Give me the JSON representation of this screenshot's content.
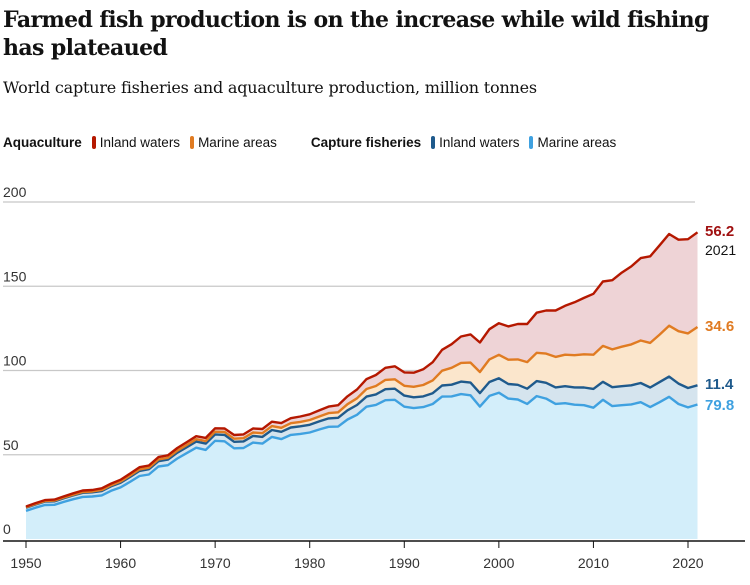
{
  "header": {
    "title": "Farmed fish production is on the increase while wild fishing has plateaued",
    "subtitle": "World capture fisheries and aquaculture production, million tonnes"
  },
  "legend": {
    "group1": "Aquaculture",
    "group2": "Capture fisheries",
    "items": [
      {
        "label": "Inland waters",
        "color": "#b51800"
      },
      {
        "label": "Marine areas",
        "color": "#e07b22"
      },
      {
        "label": "Inland waters",
        "color": "#1f5a8c"
      },
      {
        "label": "Marine areas",
        "color": "#3fa1e0"
      }
    ]
  },
  "end_labels": {
    "aqua_inland": "56.2",
    "year": "2021",
    "aqua_marine": "34.6",
    "cap_inland": "11.4",
    "cap_marine": "79.8"
  },
  "chart_data": {
    "type": "area",
    "stacked": true,
    "title": "Farmed fish production is on the increase while wild fishing has plateaued",
    "subtitle": "World capture fisheries and aquaculture production, million tonnes",
    "xlabel": "",
    "ylabel": "",
    "xlim": [
      1950,
      2021
    ],
    "ylim": [
      0,
      200
    ],
    "x_ticks": [
      1950,
      1960,
      1970,
      1980,
      1990,
      2000,
      2010,
      2020
    ],
    "y_ticks": [
      0,
      50,
      100,
      150,
      200
    ],
    "grid": true,
    "legend_position": "top",
    "x": [
      1950,
      1951,
      1952,
      1953,
      1954,
      1955,
      1956,
      1957,
      1958,
      1959,
      1960,
      1961,
      1962,
      1963,
      1964,
      1965,
      1966,
      1967,
      1968,
      1969,
      1970,
      1971,
      1972,
      1973,
      1974,
      1975,
      1976,
      1977,
      1978,
      1979,
      1980,
      1981,
      1982,
      1983,
      1984,
      1985,
      1986,
      1987,
      1988,
      1989,
      1990,
      1991,
      1992,
      1993,
      1994,
      1995,
      1996,
      1997,
      1998,
      1999,
      2000,
      2001,
      2002,
      2003,
      2004,
      2005,
      2006,
      2007,
      2008,
      2009,
      2010,
      2011,
      2012,
      2013,
      2014,
      2015,
      2016,
      2017,
      2018,
      2019,
      2020,
      2021
    ],
    "series": [
      {
        "name": "Capture fisheries – Marine areas",
        "color": "#3fa1e0",
        "values": [
          16.7,
          18.6,
          20.2,
          20.3,
          22.0,
          23.6,
          25.0,
          25.2,
          25.9,
          28.6,
          30.6,
          33.9,
          37.4,
          38.3,
          43.0,
          43.8,
          47.8,
          51.0,
          54.2,
          52.9,
          58.3,
          58.0,
          53.8,
          54.0,
          57.2,
          56.6,
          60.6,
          59.3,
          61.8,
          62.4,
          63.2,
          65.0,
          66.6,
          66.7,
          70.9,
          73.7,
          78.5,
          79.6,
          82.4,
          82.6,
          78.5,
          77.7,
          78.3,
          80.1,
          84.5,
          84.6,
          86.0,
          85.3,
          78.6,
          84.9,
          86.8,
          83.3,
          82.8,
          80.2,
          84.8,
          83.3,
          80.2,
          80.6,
          79.7,
          79.4,
          77.9,
          82.6,
          78.9,
          79.4,
          79.9,
          81.2,
          78.3,
          81.2,
          84.4,
          80.1,
          78.1,
          79.8
        ]
      },
      {
        "name": "Capture fisheries – Inland waters",
        "color": "#1f5a8c",
        "values": [
          1.8,
          1.9,
          2.0,
          2.1,
          2.2,
          2.3,
          2.4,
          2.5,
          2.6,
          2.7,
          2.8,
          2.9,
          3.0,
          3.1,
          3.2,
          3.3,
          3.4,
          3.5,
          3.6,
          3.7,
          3.8,
          3.8,
          3.9,
          3.9,
          4.0,
          4.0,
          4.1,
          4.3,
          4.4,
          4.5,
          4.6,
          4.8,
          5.0,
          5.2,
          5.5,
          5.8,
          6.0,
          6.2,
          6.5,
          6.6,
          6.6,
          6.4,
          6.3,
          6.4,
          6.6,
          7.0,
          7.4,
          7.5,
          8.0,
          8.3,
          8.6,
          8.7,
          8.7,
          9.0,
          8.9,
          9.4,
          9.8,
          10.1,
          10.3,
          10.5,
          11.2,
          10.7,
          11.2,
          11.3,
          11.3,
          11.4,
          11.6,
          11.9,
          12.0,
          12.1,
          11.5,
          11.4
        ]
      },
      {
        "name": "Aquaculture – Marine areas",
        "color": "#e07b22",
        "values": [
          0.3,
          0.3,
          0.3,
          0.4,
          0.4,
          0.4,
          0.5,
          0.5,
          0.6,
          0.6,
          0.7,
          0.8,
          0.9,
          0.9,
          1.0,
          1.1,
          1.2,
          1.3,
          1.4,
          1.5,
          1.6,
          1.7,
          1.8,
          1.9,
          2.0,
          2.2,
          2.3,
          2.4,
          2.5,
          2.6,
          2.8,
          2.9,
          3.1,
          3.3,
          3.6,
          4.0,
          4.5,
          5.0,
          5.5,
          5.6,
          5.8,
          6.2,
          6.8,
          7.6,
          8.8,
          10.0,
          11.1,
          11.9,
          12.5,
          13.4,
          13.9,
          14.4,
          15.1,
          15.8,
          16.8,
          17.3,
          18.1,
          18.7,
          19.1,
          19.7,
          20.3,
          21.3,
          22.4,
          23.4,
          24.3,
          25.2,
          26.5,
          28.2,
          30.2,
          31.1,
          32.4,
          34.6
        ]
      },
      {
        "name": "Aquaculture – Inland waters",
        "color": "#b51800",
        "values": [
          0.5,
          0.5,
          0.6,
          0.6,
          0.7,
          0.8,
          0.9,
          0.9,
          1.0,
          1.0,
          1.1,
          1.2,
          1.3,
          1.3,
          1.4,
          1.5,
          1.6,
          1.7,
          1.8,
          1.9,
          2.0,
          2.1,
          2.2,
          2.3,
          2.4,
          2.5,
          2.6,
          2.8,
          3.0,
          3.2,
          3.4,
          3.6,
          3.9,
          4.2,
          4.7,
          5.2,
          5.9,
          6.5,
          7.2,
          7.7,
          8.0,
          8.4,
          9.3,
          10.8,
          12.4,
          14.0,
          15.7,
          16.7,
          17.5,
          17.9,
          18.8,
          19.8,
          21.0,
          22.6,
          23.8,
          25.6,
          27.5,
          29.0,
          31.4,
          33.5,
          36.1,
          38.2,
          41.1,
          44.0,
          46.3,
          48.9,
          51.4,
          53.0,
          54.4,
          54.3,
          55.9,
          56.2
        ]
      }
    ]
  }
}
